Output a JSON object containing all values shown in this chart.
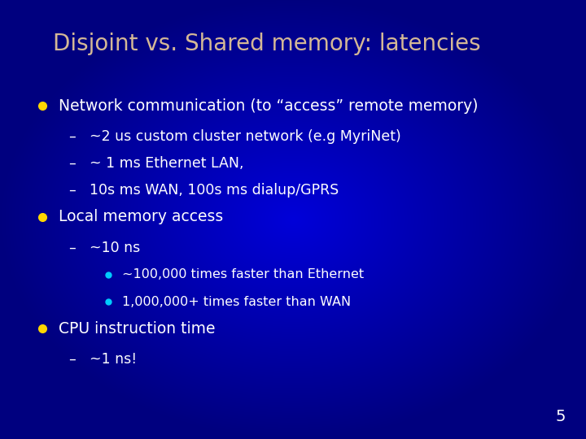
{
  "title": "Disjoint vs. Shared memory: latencies",
  "title_color": "#D4B896",
  "title_fontsize": 20,
  "background_color": "#0000BB",
  "text_color": "#FFFFFF",
  "bullet_color": "#FFD700",
  "sub_bullet_color": "#00CCFF",
  "slide_number": "5",
  "content": [
    {
      "type": "bullet",
      "text": "Network communication (to “access” remote memory)",
      "indent": 0,
      "bullet_color": "#FFD700"
    },
    {
      "type": "dash",
      "text": "~2 us custom cluster network (e.g MyriNet)",
      "indent": 1
    },
    {
      "type": "dash",
      "text": "~ 1 ms Ethernet LAN,",
      "indent": 1
    },
    {
      "type": "dash",
      "text": "10s ms WAN, 100s ms dialup/GPRS",
      "indent": 1
    },
    {
      "type": "bullet",
      "text": "Local memory access",
      "indent": 0,
      "bullet_color": "#FFD700"
    },
    {
      "type": "dash",
      "text": "~10 ns",
      "indent": 1
    },
    {
      "type": "sub_bullet",
      "text": "~100,000 times faster than Ethernet",
      "indent": 2,
      "bullet_color": "#00CCFF"
    },
    {
      "type": "sub_bullet",
      "text": "1,000,000+ times faster than WAN",
      "indent": 2,
      "bullet_color": "#00CCFF"
    },
    {
      "type": "bullet",
      "text": "CPU instruction time",
      "indent": 0,
      "bullet_color": "#FFD700"
    },
    {
      "type": "dash",
      "text": "~1 ns!",
      "indent": 1
    }
  ]
}
